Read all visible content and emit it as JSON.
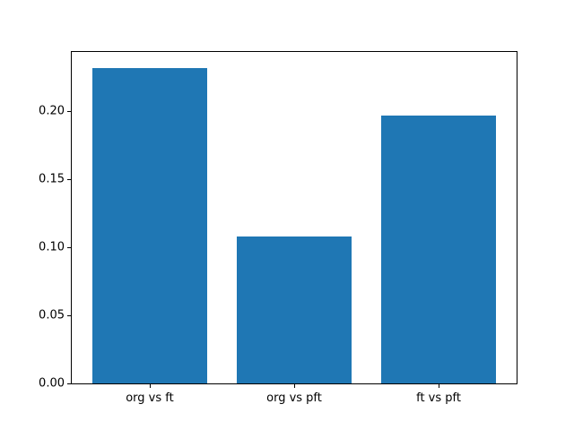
{
  "figure": {
    "background": "#ffffff"
  },
  "chart_data": {
    "type": "bar",
    "title": "",
    "xlabel": "",
    "ylabel": "",
    "categories": [
      "org vs ft",
      "org vs pft",
      "ft vs pft"
    ],
    "values": [
      0.232,
      0.108,
      0.197
    ],
    "bar_color": "#1f77b4",
    "axis_color": "#000000",
    "xlim": [
      -0.54,
      2.54
    ],
    "ylim": [
      0,
      0.2436
    ],
    "bar_width_units": 0.8,
    "yticks": [
      0,
      0.05,
      0.1,
      0.15,
      0.2
    ],
    "ytick_labels": [
      "0.00",
      "0.05",
      "0.10",
      "0.15",
      "0.20"
    ],
    "grid": false,
    "legend": null
  }
}
